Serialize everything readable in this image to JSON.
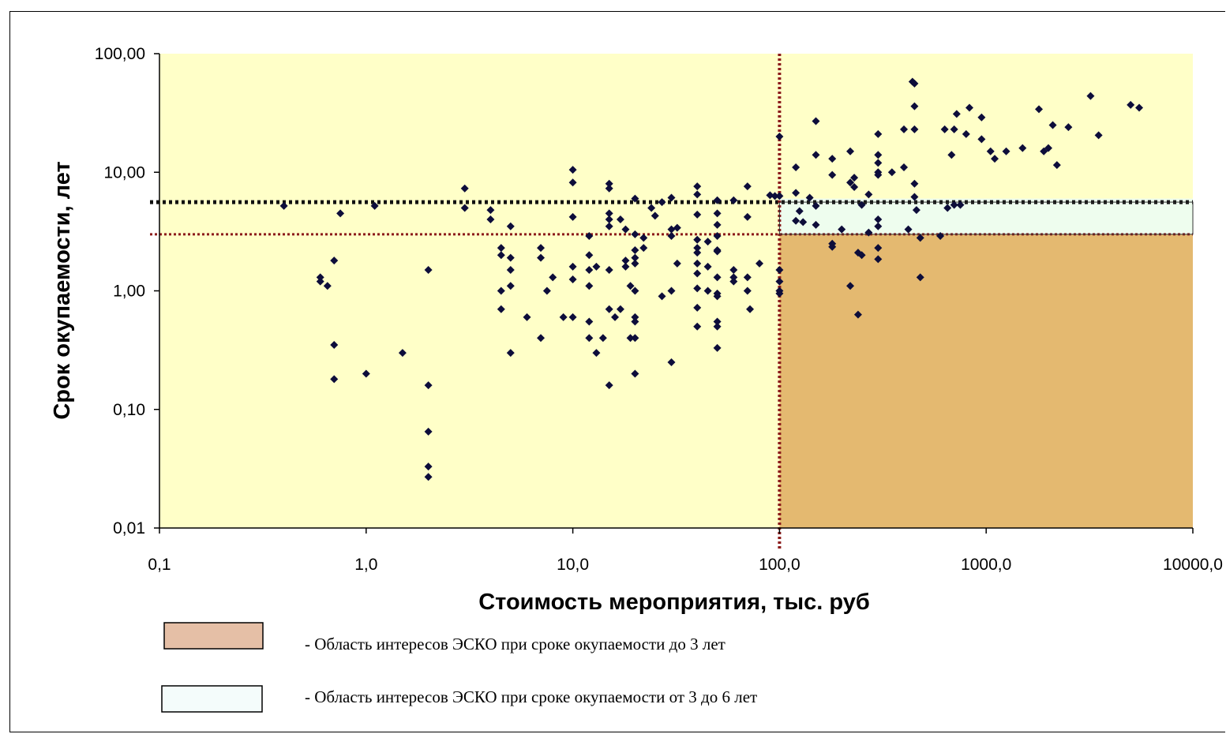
{
  "colors": {
    "plot_background": "#ffffc8",
    "region_under_3": "#e4b970",
    "region_3_to_6": "#eefdee",
    "point": "#0d0d3a",
    "line_dark_red": "#8b1a1a",
    "line_black": "#111111",
    "legend_under_3": "#e5bfa6",
    "legend_3_to_6": "#f4fcfb"
  },
  "chart_data": {
    "type": "scatter",
    "xlabel": "Стоимость мероприятия, тыс. руб",
    "ylabel": "Срок окупаемости, лет",
    "x_scale": "log",
    "y_scale": "log",
    "xlim": [
      0.1,
      10000
    ],
    "ylim": [
      0.01,
      100
    ],
    "x_tick_values": [
      0.1,
      1,
      10,
      100,
      1000,
      10000
    ],
    "x_tick_labels": [
      "0,1",
      "1,0",
      "10,0",
      "100,0",
      "1000,0",
      "10000,0"
    ],
    "y_tick_values": [
      0.01,
      0.1,
      1,
      10,
      100
    ],
    "y_tick_labels": [
      "0,01",
      "0,10",
      "1,00",
      "10,00",
      "100,00"
    ],
    "reference_lines": [
      {
        "axis": "x",
        "value": 100,
        "style": "dotted",
        "color": "dark-red"
      },
      {
        "axis": "y",
        "value": 3,
        "style": "dotted",
        "color": "dark-red"
      },
      {
        "axis": "y",
        "value": 6,
        "style": "dotted",
        "color": "black"
      }
    ],
    "regions": [
      {
        "x_range": [
          100,
          10000
        ],
        "y_range": [
          0.01,
          3
        ],
        "fill": "region_under_3"
      },
      {
        "x_range": [
          100,
          10000
        ],
        "y_range": [
          3,
          6
        ],
        "fill": "region_3_to_6"
      }
    ],
    "points": [
      [
        0.4,
        5.2
      ],
      [
        0.6,
        1.3
      ],
      [
        0.6,
        1.2
      ],
      [
        0.65,
        1.1
      ],
      [
        0.7,
        1.8
      ],
      [
        0.7,
        0.35
      ],
      [
        0.7,
        0.18
      ],
      [
        0.75,
        4.5
      ],
      [
        1.0,
        0.2
      ],
      [
        1.1,
        5.2
      ],
      [
        1.5,
        0.3
      ],
      [
        2.0,
        1.5
      ],
      [
        2.0,
        0.16
      ],
      [
        2.0,
        0.065
      ],
      [
        2.0,
        0.033
      ],
      [
        2.0,
        0.027
      ],
      [
        3.0,
        7.3
      ],
      [
        3.0,
        5.0
      ],
      [
        4.0,
        4.8
      ],
      [
        4.0,
        4.0
      ],
      [
        4.5,
        2.3
      ],
      [
        4.5,
        2.0
      ],
      [
        4.5,
        1.0
      ],
      [
        4.5,
        0.7
      ],
      [
        5.0,
        3.5
      ],
      [
        5.0,
        1.9
      ],
      [
        5.0,
        1.5
      ],
      [
        5.0,
        1.1
      ],
      [
        5.0,
        0.3
      ],
      [
        6.0,
        0.6
      ],
      [
        7.0,
        2.3
      ],
      [
        7.0,
        1.9
      ],
      [
        7.0,
        0.4
      ],
      [
        7.5,
        1.0
      ],
      [
        8.0,
        1.3
      ],
      [
        9.0,
        0.6
      ],
      [
        10.0,
        10.5
      ],
      [
        10.0,
        8.2
      ],
      [
        10.0,
        4.2
      ],
      [
        10.0,
        1.6
      ],
      [
        10.0,
        1.25
      ],
      [
        10.0,
        0.6
      ],
      [
        12.0,
        2.9
      ],
      [
        12.0,
        2.0
      ],
      [
        12.0,
        1.5
      ],
      [
        12.0,
        1.1
      ],
      [
        12.0,
        0.55
      ],
      [
        12.0,
        0.4
      ],
      [
        13.0,
        1.6
      ],
      [
        13.0,
        0.3
      ],
      [
        14.0,
        0.4
      ],
      [
        15.0,
        8.0
      ],
      [
        15.0,
        7.3
      ],
      [
        15.0,
        4.5
      ],
      [
        15.0,
        4.0
      ],
      [
        15.0,
        3.5
      ],
      [
        15.0,
        1.5
      ],
      [
        15.0,
        0.7
      ],
      [
        15.0,
        0.16
      ],
      [
        16.0,
        0.6
      ],
      [
        17.0,
        4.0
      ],
      [
        17.0,
        0.7
      ],
      [
        18.0,
        3.3
      ],
      [
        18.0,
        1.8
      ],
      [
        18.0,
        1.6
      ],
      [
        19.0,
        1.1
      ],
      [
        19.0,
        0.4
      ],
      [
        20.0,
        6.0
      ],
      [
        20.0,
        3.0
      ],
      [
        20.0,
        2.2
      ],
      [
        20.0,
        1.9
      ],
      [
        20.0,
        1.7
      ],
      [
        20.0,
        1.0
      ],
      [
        20.0,
        0.6
      ],
      [
        20.0,
        0.55
      ],
      [
        20.0,
        0.4
      ],
      [
        20.0,
        0.2
      ],
      [
        22.0,
        2.8
      ],
      [
        22.0,
        2.3
      ],
      [
        24.0,
        5.0
      ],
      [
        25.0,
        4.3
      ],
      [
        27.0,
        5.6
      ],
      [
        27.0,
        0.9
      ],
      [
        30.0,
        6.1
      ],
      [
        30.0,
        3.3
      ],
      [
        30.0,
        2.9
      ],
      [
        30.0,
        1.0
      ],
      [
        30.0,
        0.25
      ],
      [
        32.0,
        1.7
      ],
      [
        32.0,
        3.4
      ],
      [
        40.0,
        7.6
      ],
      [
        40.0,
        6.5
      ],
      [
        40.0,
        4.4
      ],
      [
        40.0,
        2.7
      ],
      [
        40.0,
        2.3
      ],
      [
        40.0,
        2.1
      ],
      [
        40.0,
        1.7
      ],
      [
        40.0,
        1.4
      ],
      [
        40.0,
        1.05
      ],
      [
        40.0,
        0.72
      ],
      [
        40.0,
        0.5
      ],
      [
        45.0,
        1.6
      ],
      [
        45.0,
        1.0
      ],
      [
        45.0,
        2.6
      ],
      [
        50.0,
        5.8
      ],
      [
        50.0,
        4.5
      ],
      [
        50.0,
        3.6
      ],
      [
        50.0,
        2.9
      ],
      [
        50.0,
        2.2
      ],
      [
        50.0,
        2.15
      ],
      [
        50.0,
        1.3
      ],
      [
        50.0,
        0.95
      ],
      [
        50.0,
        0.9
      ],
      [
        50.0,
        0.55
      ],
      [
        50.0,
        0.5
      ],
      [
        50.0,
        0.33
      ],
      [
        60.0,
        5.8
      ],
      [
        60.0,
        1.5
      ],
      [
        60.0,
        1.3
      ],
      [
        60.0,
        1.2
      ],
      [
        70.0,
        7.6
      ],
      [
        70.0,
        4.2
      ],
      [
        70.0,
        1.3
      ],
      [
        70.0,
        1.0
      ],
      [
        72.0,
        0.7
      ],
      [
        80.0,
        1.7
      ],
      [
        90.0,
        6.4
      ],
      [
        95.0,
        6.3
      ],
      [
        100.0,
        20.0
      ],
      [
        100.0,
        6.3
      ],
      [
        100.0,
        1.5
      ],
      [
        100.0,
        1.2
      ],
      [
        100.0,
        1.0
      ],
      [
        100.0,
        0.95
      ],
      [
        120.0,
        11.0
      ],
      [
        120.0,
        6.7
      ],
      [
        120.0,
        3.9
      ],
      [
        125.0,
        4.7
      ],
      [
        130.0,
        3.8
      ],
      [
        140.0,
        6.1
      ],
      [
        150.0,
        27.0
      ],
      [
        150.0,
        14.0
      ],
      [
        150.0,
        5.2
      ],
      [
        150.0,
        3.6
      ],
      [
        180.0,
        13.0
      ],
      [
        180.0,
        9.5
      ],
      [
        180.0,
        2.5
      ],
      [
        180.0,
        2.35
      ],
      [
        200.0,
        3.3
      ],
      [
        220.0,
        15.0
      ],
      [
        220.0,
        8.2
      ],
      [
        220.0,
        1.1
      ],
      [
        230.0,
        9.0
      ],
      [
        230.0,
        7.5
      ],
      [
        240.0,
        2.1
      ],
      [
        240.0,
        0.63
      ],
      [
        250.0,
        5.3
      ],
      [
        250.0,
        2.0
      ],
      [
        270.0,
        6.5
      ],
      [
        270.0,
        3.1
      ],
      [
        300.0,
        21.0
      ],
      [
        300.0,
        14.0
      ],
      [
        300.0,
        12.0
      ],
      [
        300.0,
        10.0
      ],
      [
        300.0,
        9.5
      ],
      [
        300.0,
        4.0
      ],
      [
        300.0,
        3.5
      ],
      [
        300.0,
        2.3
      ],
      [
        300.0,
        1.85
      ],
      [
        350.0,
        10.0
      ],
      [
        400.0,
        23.0
      ],
      [
        400.0,
        11.0
      ],
      [
        420.0,
        3.3
      ],
      [
        440.0,
        58.0
      ],
      [
        450.0,
        56.0
      ],
      [
        450.0,
        36.0
      ],
      [
        450.0,
        23.0
      ],
      [
        450.0,
        8.0
      ],
      [
        450.0,
        6.2
      ],
      [
        460.0,
        4.8
      ],
      [
        480.0,
        2.8
      ],
      [
        480.0,
        1.3
      ],
      [
        600.0,
        2.9
      ],
      [
        630.0,
        23.0
      ],
      [
        650.0,
        5.0
      ],
      [
        680.0,
        14.0
      ],
      [
        700.0,
        23.0
      ],
      [
        700.0,
        5.3
      ],
      [
        720.0,
        31.0
      ],
      [
        750.0,
        5.3
      ],
      [
        800.0,
        21.0
      ],
      [
        830.0,
        35.0
      ],
      [
        950.0,
        29.0
      ],
      [
        950.0,
        19.0
      ],
      [
        1050.0,
        15.0
      ],
      [
        1100.0,
        13.0
      ],
      [
        1250.0,
        15.0
      ],
      [
        1500.0,
        16.0
      ],
      [
        1800.0,
        34.0
      ],
      [
        1900.0,
        15.0
      ],
      [
        2000.0,
        16.0
      ],
      [
        2100.0,
        25.0
      ],
      [
        2200.0,
        11.5
      ],
      [
        2500.0,
        24.0
      ],
      [
        3200.0,
        44.0
      ],
      [
        3500.0,
        20.5
      ],
      [
        5000.0,
        37.0
      ],
      [
        5500.0,
        35.0
      ]
    ],
    "legend": [
      {
        "swatch": "legend_under_3",
        "text": "-  Область интересов ЭСКО  при сроке окупаемости до 3 лет"
      },
      {
        "swatch": "legend_3_to_6",
        "text": "-  Область интересов ЭСКО  при сроке окупаемости от 3 до 6 лет"
      }
    ]
  }
}
